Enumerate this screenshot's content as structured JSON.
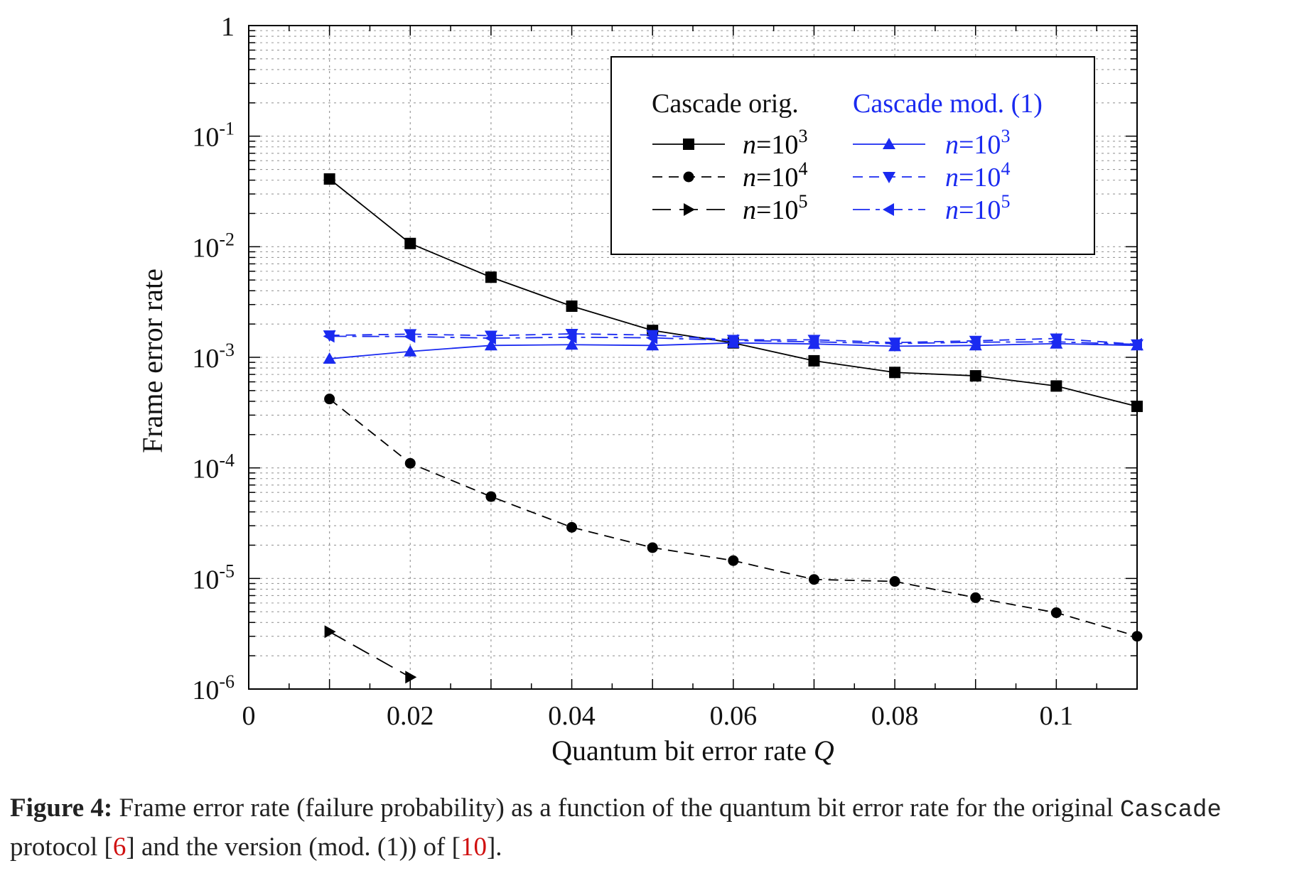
{
  "chart_data": {
    "type": "line",
    "xlabel_prefix": "Quantum bit error rate ",
    "xlabel_var": "Q",
    "ylabel": "Frame error rate",
    "xlim": [
      0,
      0.11
    ],
    "ylim": [
      1e-06,
      1
    ],
    "yscale": "log",
    "grid": true,
    "x_ticks": [
      {
        "value": 0,
        "label": "0"
      },
      {
        "value": 0.02,
        "label": "0.02"
      },
      {
        "value": 0.04,
        "label": "0.04"
      },
      {
        "value": 0.06,
        "label": "0.06"
      },
      {
        "value": 0.08,
        "label": "0.08"
      },
      {
        "value": 0.1,
        "label": "0.1"
      }
    ],
    "y_ticks": [
      {
        "value": 1,
        "base": "1",
        "exp": ""
      },
      {
        "value": 0.1,
        "base": "10",
        "exp": "-1"
      },
      {
        "value": 0.01,
        "base": "10",
        "exp": "-2"
      },
      {
        "value": 0.001,
        "base": "10",
        "exp": "-3"
      },
      {
        "value": 0.0001,
        "base": "10",
        "exp": "-4"
      },
      {
        "value": 1e-05,
        "base": "10",
        "exp": "-5"
      },
      {
        "value": 1e-06,
        "base": "10",
        "exp": "-6"
      }
    ],
    "legend": {
      "position": "top-right",
      "group_orig_title": "Cascade orig.",
      "group_mod_title": "Cascade mod. (1)"
    },
    "series": [
      {
        "id": "orig-n3",
        "group": "orig",
        "n_label": "n=10",
        "n_exp": "3",
        "color": "#000000",
        "dash": "solid",
        "marker": "square",
        "x": [
          0.01,
          0.02,
          0.03,
          0.04,
          0.05,
          0.06,
          0.07,
          0.08,
          0.09,
          0.1,
          0.11
        ],
        "y": [
          0.041,
          0.0107,
          0.0053,
          0.0029,
          0.00175,
          0.00135,
          0.00093,
          0.00073,
          0.00068,
          0.00055,
          0.00036
        ]
      },
      {
        "id": "orig-n4",
        "group": "orig",
        "n_label": "n=10",
        "n_exp": "4",
        "color": "#000000",
        "dash": "dashed",
        "marker": "circle",
        "x": [
          0.01,
          0.02,
          0.03,
          0.04,
          0.05,
          0.06,
          0.07,
          0.08,
          0.09,
          0.1,
          0.11
        ],
        "y": [
          0.00042,
          0.00011,
          5.5e-05,
          2.9e-05,
          1.9e-05,
          1.45e-05,
          9.8e-06,
          9.4e-06,
          6.7e-06,
          4.9e-06,
          3e-06
        ]
      },
      {
        "id": "orig-n5",
        "group": "orig",
        "n_label": "n=10",
        "n_exp": "5",
        "color": "#000000",
        "dash": "longdash",
        "marker": "triangle-right",
        "x": [
          0.01,
          0.02
        ],
        "y": [
          3.3e-06,
          1.28e-06
        ]
      },
      {
        "id": "mod-n3",
        "group": "mod",
        "n_label": "n=10",
        "n_exp": "3",
        "color": "#1a2af0",
        "dash": "solid",
        "marker": "triangle-up",
        "x": [
          0.01,
          0.02,
          0.03,
          0.04,
          0.05,
          0.06,
          0.07,
          0.08,
          0.09,
          0.1,
          0.11
        ],
        "y": [
          0.00097,
          0.00113,
          0.00128,
          0.0013,
          0.00128,
          0.00135,
          0.00132,
          0.00126,
          0.00128,
          0.00133,
          0.00128
        ]
      },
      {
        "id": "mod-n4",
        "group": "mod",
        "n_label": "n=10",
        "n_exp": "4",
        "color": "#1a2af0",
        "dash": "dashed",
        "marker": "triangle-down",
        "x": [
          0.01,
          0.02,
          0.03,
          0.04,
          0.05,
          0.06,
          0.07,
          0.08,
          0.09,
          0.1,
          0.11
        ],
        "y": [
          0.00158,
          0.00162,
          0.00157,
          0.00163,
          0.00159,
          0.00144,
          0.00144,
          0.00136,
          0.00141,
          0.00148,
          0.00131
        ]
      },
      {
        "id": "mod-n5",
        "group": "mod",
        "n_label": "n=10",
        "n_exp": "5",
        "color": "#1a2af0",
        "dash": "dashdot",
        "marker": "triangle-left",
        "x": [
          0.01,
          0.02,
          0.03,
          0.04,
          0.05,
          0.06,
          0.07,
          0.08,
          0.09,
          0.1,
          0.11
        ],
        "y": [
          0.00155,
          0.00154,
          0.00149,
          0.00152,
          0.0015,
          0.00142,
          0.00138,
          0.00133,
          0.00137,
          0.00138,
          0.00131
        ]
      }
    ]
  },
  "caption": {
    "label": "Figure 4:",
    "text_1": " Frame error rate (failure probability) as a function of the quantum bit error rate for the original ",
    "code": "Cascade",
    "text_2": " protocol [",
    "cite_1": "6",
    "text_3": "] and the version (mod. (1)) of [",
    "cite_2": "10",
    "text_4": "]."
  }
}
